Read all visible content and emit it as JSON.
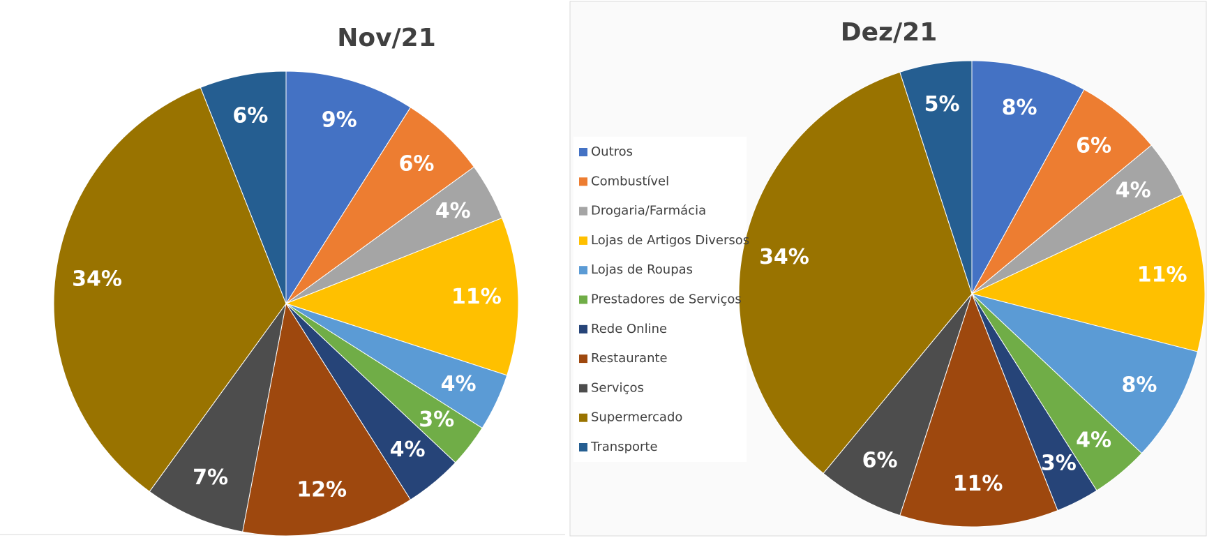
{
  "chart_data": [
    {
      "type": "pie",
      "title": "Nov/21",
      "categories": [
        "Outros",
        "Combustível",
        "Drogaria/Farmácia",
        "Lojas de Artigos Diversos",
        "Lojas de Roupas",
        "Prestadores de Serviços",
        "Rede Online",
        "Restaurante",
        "Serviços",
        "Supermercado",
        "Transporte"
      ],
      "values": [
        9,
        6,
        4,
        11,
        4,
        3,
        4,
        12,
        7,
        34,
        6
      ],
      "value_labels": [
        "9%",
        "6%",
        "4%",
        "11%",
        "4%",
        "3%",
        "4%",
        "12%",
        "7%",
        "34%",
        "6%"
      ],
      "colors": [
        "#4472c4",
        "#ed7d31",
        "#a5a5a5",
        "#ffc000",
        "#5b9bd5",
        "#70ad47",
        "#264478",
        "#9e480e",
        "#4d4d4d",
        "#997300",
        "#255e91"
      ],
      "legend": "left"
    },
    {
      "type": "pie",
      "title": "Dez/21",
      "categories": [
        "Outros",
        "Combustível",
        "Drogaria/Farmácia",
        "Lojas de Artigos Diversos",
        "Lojas de Roupas",
        "Prestadores de Serviços",
        "Rede Online",
        "Restaurante",
        "Serviços",
        "Supermercado",
        "Transporte"
      ],
      "values": [
        8,
        6,
        4,
        11,
        8,
        4,
        3,
        11,
        6,
        34,
        5
      ],
      "value_labels": [
        "8%",
        "6%",
        "4%",
        "11%",
        "8%",
        "4%",
        "3%",
        "11%",
        "6%",
        "34%",
        "5%"
      ],
      "colors": [
        "#4472c4",
        "#ed7d31",
        "#a5a5a5",
        "#ffc000",
        "#5b9bd5",
        "#70ad47",
        "#264478",
        "#9e480e",
        "#4d4d4d",
        "#997300",
        "#255e91"
      ]
    }
  ]
}
